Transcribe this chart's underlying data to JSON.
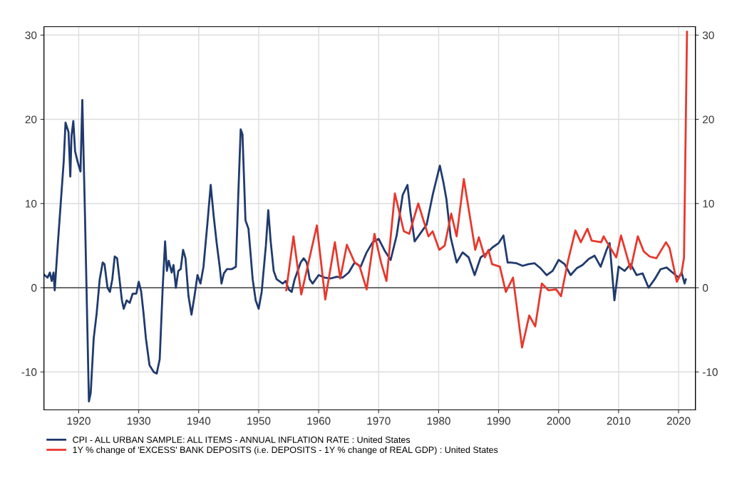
{
  "chart_data": {
    "type": "line",
    "xlim": [
      1914.2,
      2022.8
    ],
    "xticks": [
      1920,
      1930,
      1940,
      1950,
      1960,
      1970,
      1980,
      1990,
      2000,
      2010,
      2020
    ],
    "ylim": [
      -14.5,
      31
    ],
    "yticks": [
      -10,
      0,
      10,
      20,
      30
    ],
    "y2lim": [
      -14.5,
      31
    ],
    "y2ticks": [
      -10,
      0,
      10,
      20,
      30
    ],
    "grid": true,
    "legend": "bottom",
    "line_style": "solid",
    "marker": "none",
    "ref_lines": [
      {
        "axis": "y",
        "value": 0,
        "color": "#444444",
        "line_style": "solid"
      }
    ],
    "series": [
      {
        "name": "CPI - ALL URBAN SAMPLE: ALL ITEMS - ANNUAL INFLATION RATE : United States",
        "color": "#1f3a6e",
        "axis": "y",
        "x": [
          1914.3,
          1914.8,
          1915.2,
          1915.5,
          1915.8,
          1916.0,
          1916.5,
          1917.0,
          1917.5,
          1917.8,
          1918.3,
          1918.6,
          1918.8,
          1919.1,
          1919.4,
          1919.8,
          1920.3,
          1920.6,
          1921.0,
          1921.3,
          1921.7,
          1922.0,
          1922.5,
          1923.0,
          1923.5,
          1924.0,
          1924.3,
          1924.8,
          1925.2,
          1925.6,
          1926.0,
          1926.4,
          1926.8,
          1927.2,
          1927.5,
          1928.0,
          1928.5,
          1929.0,
          1929.6,
          1930.0,
          1930.4,
          1930.8,
          1931.2,
          1931.8,
          1932.5,
          1933.0,
          1933.5,
          1934.0,
          1934.4,
          1934.7,
          1935.0,
          1935.5,
          1935.8,
          1936.2,
          1936.6,
          1937.0,
          1937.4,
          1937.8,
          1938.3,
          1938.8,
          1939.3,
          1939.8,
          1940.3,
          1940.8,
          1941.5,
          1942.0,
          1942.5,
          1943.0,
          1943.5,
          1943.8,
          1944.2,
          1944.7,
          1945.5,
          1946.2,
          1946.6,
          1947.0,
          1947.3,
          1947.8,
          1948.3,
          1949.0,
          1949.5,
          1950.0,
          1950.5,
          1951.2,
          1951.6,
          1952.0,
          1952.5,
          1953.0,
          1954.0,
          1954.5,
          1955.0,
          1955.5,
          1956.0,
          1957.0,
          1957.5,
          1958.0,
          1958.5,
          1959.0,
          1960.0,
          1961.0,
          1962.0,
          1963.0,
          1964.0,
          1965.0,
          1966.0,
          1967.0,
          1968.0,
          1969.0,
          1970.0,
          1971.0,
          1972.0,
          1973.0,
          1974.0,
          1974.8,
          1975.3,
          1976.0,
          1977.0,
          1978.0,
          1979.0,
          1980.2,
          1980.8,
          1981.3,
          1982.0,
          1983.0,
          1984.0,
          1985.0,
          1986.0,
          1987.0,
          1988.0,
          1989.0,
          1990.0,
          1990.8,
          1991.5,
          1992.0,
          1993.0,
          1994.0,
          1995.0,
          1996.0,
          1997.0,
          1998.0,
          1999.0,
          2000.0,
          2001.0,
          2002.0,
          2003.0,
          2004.0,
          2005.0,
          2006.0,
          2007.0,
          2008.0,
          2008.5,
          2009.3,
          2010.0,
          2011.0,
          2012.0,
          2013.0,
          2014.0,
          2015.0,
          2016.0,
          2017.0,
          2018.0,
          2019.0,
          2020.0,
          2020.5,
          2021.0,
          2021.2
        ],
        "values": [
          1.5,
          1.2,
          1.8,
          0.8,
          1.8,
          -0.3,
          5,
          10,
          15,
          19.6,
          18.5,
          13.2,
          18.0,
          19.8,
          16.2,
          15,
          13.8,
          22.3,
          10,
          0,
          -13.5,
          -12.5,
          -6,
          -3,
          1,
          3,
          2.8,
          0,
          -0.5,
          1,
          3.7,
          3.5,
          1,
          -1.5,
          -2.5,
          -1.5,
          -1.8,
          -0.7,
          -0.7,
          0.7,
          -0.4,
          -3,
          -6,
          -9.2,
          -10,
          -10.2,
          -8.5,
          0,
          5.5,
          2,
          3.2,
          1.8,
          2.7,
          0,
          2,
          2.2,
          4.5,
          3.5,
          -1,
          -3.2,
          -1,
          1.5,
          0.5,
          2.5,
          8,
          12.2,
          8.5,
          5.3,
          2.5,
          0.5,
          1.7,
          2.2,
          2.2,
          2.5,
          11,
          18.8,
          18.2,
          8,
          7,
          1,
          -1.5,
          -2.5,
          -0.5,
          5,
          9.2,
          5.5,
          2,
          1,
          0.5,
          0.8,
          -0.2,
          -0.5,
          1,
          3,
          3.5,
          3,
          1,
          0.5,
          1.5,
          1.2,
          1.1,
          1.3,
          1.2,
          1.8,
          3,
          2.5,
          4.2,
          5.4,
          5.8,
          4.4,
          3.3,
          6.2,
          11,
          12.2,
          9,
          5.5,
          6.5,
          7.5,
          11,
          14.5,
          12.5,
          10.5,
          6,
          3,
          4.2,
          3.6,
          1.5,
          3.6,
          4.1,
          4.8,
          5.3,
          6.2,
          3,
          3,
          2.9,
          2.6,
          2.8,
          2.9,
          2.3,
          1.5,
          2,
          3.3,
          2.8,
          1.5,
          2.3,
          2.7,
          3.4,
          3.8,
          2.5,
          4.5,
          5.3,
          -1.5,
          2.5,
          2,
          2.8,
          1.5,
          1.7,
          0,
          1,
          2.2,
          2.4,
          1.8,
          1.2,
          1.8,
          0.5,
          1.0
        ]
      },
      {
        "name": "1Y % change of 'EXCESS' BANK DEPOSITS (i.e. DEPOSITS - 1Y % change of REAL GDP) : United States",
        "color": "#e8372c",
        "axis": "y",
        "x": [
          1954.6,
          1955.8,
          1957.1,
          1959.7,
          1961.1,
          1962.7,
          1963.6,
          1964.7,
          1966.0,
          1966.8,
          1968.0,
          1969.3,
          1970.4,
          1971.3,
          1972.7,
          1974.2,
          1975.1,
          1976.6,
          1978.3,
          1979.0,
          1980.1,
          1981.0,
          1982.1,
          1983.0,
          1984.2,
          1986.1,
          1986.7,
          1987.7,
          1988.3,
          1988.9,
          1990.2,
          1991.2,
          1992.4,
          1993.9,
          1995.1,
          1996.1,
          1997.2,
          1998.3,
          1999.6,
          2000.4,
          2001.6,
          2002.8,
          2003.7,
          2004.8,
          2005.5,
          2007.1,
          2007.5,
          2008.4,
          2009.6,
          2010.4,
          2012.0,
          2013.2,
          2014.2,
          2015.2,
          2016.3,
          2017.9,
          2018.5,
          2019.7,
          2020.5,
          2020.9,
          2021.4
        ],
        "values": [
          -0.3,
          6.1,
          -0.8,
          7.4,
          -1.4,
          5.4,
          1.1,
          5.1,
          3.0,
          2.6,
          -0.2,
          6.4,
          3.0,
          0.8,
          11.2,
          6.7,
          6.4,
          10.0,
          6.1,
          6.7,
          4.5,
          5.0,
          8.8,
          6.1,
          12.9,
          4.5,
          6.0,
          3.6,
          4.5,
          2.8,
          2.5,
          -0.5,
          1.2,
          -7.1,
          -3.3,
          -4.6,
          0.5,
          -0.3,
          -0.2,
          -1.0,
          3.3,
          6.8,
          5.4,
          7.0,
          5.6,
          5.4,
          6.1,
          5.0,
          3.6,
          6.2,
          2.2,
          6.1,
          4.3,
          3.7,
          3.5,
          5.4,
          4.7,
          0.7,
          1.8,
          3.6,
          30.4
        ]
      }
    ]
  }
}
